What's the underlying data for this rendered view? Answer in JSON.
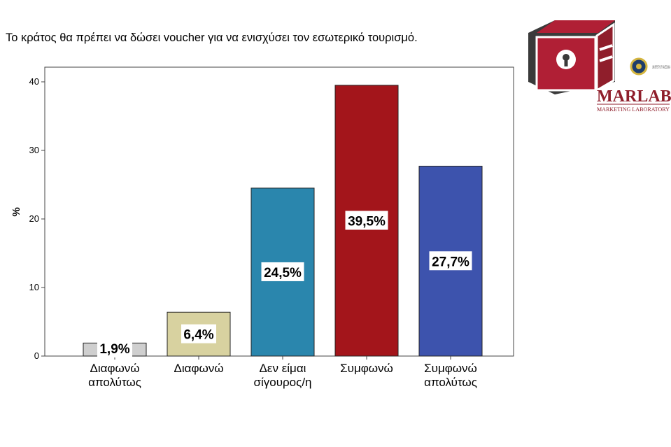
{
  "title": "Το κράτος θα πρέπει να δώσει voucher για να ενισχύσει τον εσωτερικό τουρισμό.",
  "logo": {
    "name": "MARLAB",
    "subtitle": "MARKETING LABORATORY",
    "seal_text": "UNIVERSITY OF MACEDONIA"
  },
  "chart_data": {
    "type": "bar",
    "title": "Το κράτος θα πρέπει να δώσει voucher για να ενισχύσει τον εσωτερικό τουρισμό.",
    "xlabel": "",
    "ylabel": "%",
    "ylim": [
      0,
      40
    ],
    "yticks": [
      "0",
      "10",
      "20",
      "30",
      "40"
    ],
    "grid": false,
    "categories": [
      [
        "Διαφωνώ",
        "απολύτως"
      ],
      [
        "Διαφωνώ"
      ],
      [
        "Δεν είμαι",
        "σίγουρος/η"
      ],
      [
        "Συμφωνώ"
      ],
      [
        "Συμφωνώ",
        "απολύτως"
      ]
    ],
    "values": [
      1.9,
      6.4,
      24.5,
      39.5,
      27.7
    ],
    "data_labels": [
      "1,9%",
      "6,4%",
      "24,5%",
      "39,5%",
      "27,7%"
    ],
    "colors": [
      "#cfcfcf",
      "#d8d2a0",
      "#2a86ad",
      "#a3151b",
      "#3d53ad"
    ]
  }
}
